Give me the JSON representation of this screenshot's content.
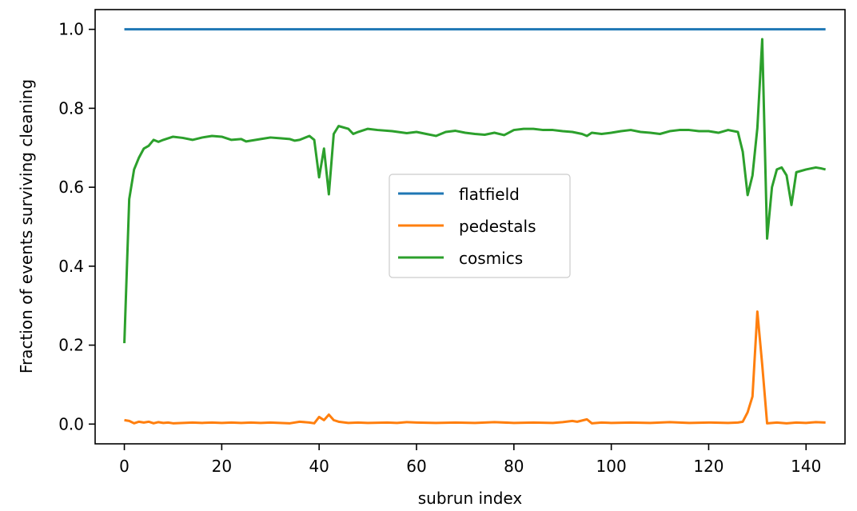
{
  "chart_data": {
    "type": "line",
    "title": "",
    "xlabel": "subrun index",
    "ylabel": "Fraction of events surviving cleaning",
    "xlim": [
      -6,
      148
    ],
    "ylim": [
      -0.05,
      1.05
    ],
    "xticks": [
      0,
      20,
      40,
      60,
      80,
      100,
      120,
      140
    ],
    "yticks": [
      0.0,
      0.2,
      0.4,
      0.6,
      0.8,
      1.0
    ],
    "xtick_labels": [
      "0",
      "20",
      "40",
      "60",
      "80",
      "100",
      "120",
      "140"
    ],
    "ytick_labels": [
      "0.0",
      "0.2",
      "0.4",
      "0.6",
      "0.8",
      "1.0"
    ],
    "grid": false,
    "legend_position": "center-right",
    "series": [
      {
        "name": "flatfield",
        "color": "#1f77b4",
        "points": [
          [
            0,
            1.0
          ],
          [
            144,
            1.0
          ]
        ]
      },
      {
        "name": "pedestals",
        "color": "#ff7f0e",
        "points": [
          [
            0,
            0.01
          ],
          [
            1,
            0.008
          ],
          [
            2,
            0.002
          ],
          [
            3,
            0.006
          ],
          [
            4,
            0.004
          ],
          [
            5,
            0.006
          ],
          [
            6,
            0.002
          ],
          [
            7,
            0.005
          ],
          [
            8,
            0.003
          ],
          [
            9,
            0.004
          ],
          [
            10,
            0.002
          ],
          [
            12,
            0.003
          ],
          [
            14,
            0.004
          ],
          [
            16,
            0.003
          ],
          [
            18,
            0.004
          ],
          [
            20,
            0.003
          ],
          [
            22,
            0.004
          ],
          [
            24,
            0.003
          ],
          [
            26,
            0.004
          ],
          [
            28,
            0.003
          ],
          [
            30,
            0.004
          ],
          [
            32,
            0.003
          ],
          [
            34,
            0.002
          ],
          [
            36,
            0.006
          ],
          [
            38,
            0.004
          ],
          [
            39,
            0.002
          ],
          [
            40,
            0.018
          ],
          [
            41,
            0.01
          ],
          [
            42,
            0.024
          ],
          [
            43,
            0.01
          ],
          [
            44,
            0.006
          ],
          [
            46,
            0.003
          ],
          [
            48,
            0.004
          ],
          [
            50,
            0.003
          ],
          [
            54,
            0.004
          ],
          [
            56,
            0.003
          ],
          [
            58,
            0.005
          ],
          [
            60,
            0.004
          ],
          [
            64,
            0.003
          ],
          [
            68,
            0.004
          ],
          [
            72,
            0.003
          ],
          [
            76,
            0.005
          ],
          [
            80,
            0.003
          ],
          [
            84,
            0.004
          ],
          [
            88,
            0.003
          ],
          [
            90,
            0.005
          ],
          [
            92,
            0.008
          ],
          [
            93,
            0.006
          ],
          [
            95,
            0.012
          ],
          [
            96,
            0.002
          ],
          [
            98,
            0.004
          ],
          [
            100,
            0.003
          ],
          [
            104,
            0.004
          ],
          [
            108,
            0.003
          ],
          [
            112,
            0.005
          ],
          [
            116,
            0.003
          ],
          [
            120,
            0.004
          ],
          [
            124,
            0.003
          ],
          [
            126,
            0.004
          ],
          [
            127,
            0.006
          ],
          [
            128,
            0.03
          ],
          [
            129,
            0.07
          ],
          [
            130,
            0.285
          ],
          [
            131,
            0.15
          ],
          [
            132,
            0.002
          ],
          [
            134,
            0.004
          ],
          [
            136,
            0.002
          ],
          [
            138,
            0.004
          ],
          [
            140,
            0.003
          ],
          [
            142,
            0.005
          ],
          [
            144,
            0.004
          ]
        ]
      },
      {
        "name": "cosmics",
        "color": "#2ca02c",
        "points": [
          [
            0,
            0.205
          ],
          [
            1,
            0.57
          ],
          [
            2,
            0.645
          ],
          [
            3,
            0.675
          ],
          [
            4,
            0.698
          ],
          [
            5,
            0.705
          ],
          [
            6,
            0.72
          ],
          [
            7,
            0.715
          ],
          [
            8,
            0.72
          ],
          [
            10,
            0.728
          ],
          [
            12,
            0.725
          ],
          [
            14,
            0.72
          ],
          [
            16,
            0.726
          ],
          [
            18,
            0.73
          ],
          [
            20,
            0.728
          ],
          [
            22,
            0.72
          ],
          [
            24,
            0.722
          ],
          [
            25,
            0.716
          ],
          [
            26,
            0.718
          ],
          [
            28,
            0.722
          ],
          [
            30,
            0.726
          ],
          [
            32,
            0.724
          ],
          [
            34,
            0.722
          ],
          [
            35,
            0.718
          ],
          [
            36,
            0.72
          ],
          [
            38,
            0.73
          ],
          [
            39,
            0.72
          ],
          [
            40,
            0.625
          ],
          [
            41,
            0.698
          ],
          [
            42,
            0.582
          ],
          [
            43,
            0.735
          ],
          [
            44,
            0.755
          ],
          [
            46,
            0.748
          ],
          [
            47,
            0.735
          ],
          [
            48,
            0.74
          ],
          [
            50,
            0.748
          ],
          [
            52,
            0.745
          ],
          [
            55,
            0.742
          ],
          [
            58,
            0.737
          ],
          [
            60,
            0.74
          ],
          [
            62,
            0.735
          ],
          [
            64,
            0.73
          ],
          [
            66,
            0.74
          ],
          [
            68,
            0.743
          ],
          [
            70,
            0.738
          ],
          [
            72,
            0.735
          ],
          [
            74,
            0.733
          ],
          [
            76,
            0.738
          ],
          [
            78,
            0.732
          ],
          [
            80,
            0.745
          ],
          [
            82,
            0.748
          ],
          [
            84,
            0.748
          ],
          [
            86,
            0.745
          ],
          [
            88,
            0.745
          ],
          [
            90,
            0.742
          ],
          [
            92,
            0.74
          ],
          [
            94,
            0.735
          ],
          [
            95,
            0.73
          ],
          [
            96,
            0.738
          ],
          [
            98,
            0.735
          ],
          [
            100,
            0.738
          ],
          [
            102,
            0.742
          ],
          [
            104,
            0.745
          ],
          [
            106,
            0.74
          ],
          [
            108,
            0.738
          ],
          [
            110,
            0.735
          ],
          [
            112,
            0.742
          ],
          [
            114,
            0.745
          ],
          [
            116,
            0.745
          ],
          [
            118,
            0.742
          ],
          [
            120,
            0.742
          ],
          [
            122,
            0.738
          ],
          [
            124,
            0.745
          ],
          [
            126,
            0.74
          ],
          [
            127,
            0.69
          ],
          [
            128,
            0.58
          ],
          [
            129,
            0.63
          ],
          [
            130,
            0.75
          ],
          [
            131,
            0.975
          ],
          [
            132,
            0.47
          ],
          [
            133,
            0.6
          ],
          [
            134,
            0.645
          ],
          [
            135,
            0.65
          ],
          [
            136,
            0.63
          ],
          [
            137,
            0.555
          ],
          [
            138,
            0.638
          ],
          [
            140,
            0.645
          ],
          [
            142,
            0.65
          ],
          [
            143,
            0.648
          ],
          [
            144,
            0.645
          ]
        ]
      }
    ]
  }
}
